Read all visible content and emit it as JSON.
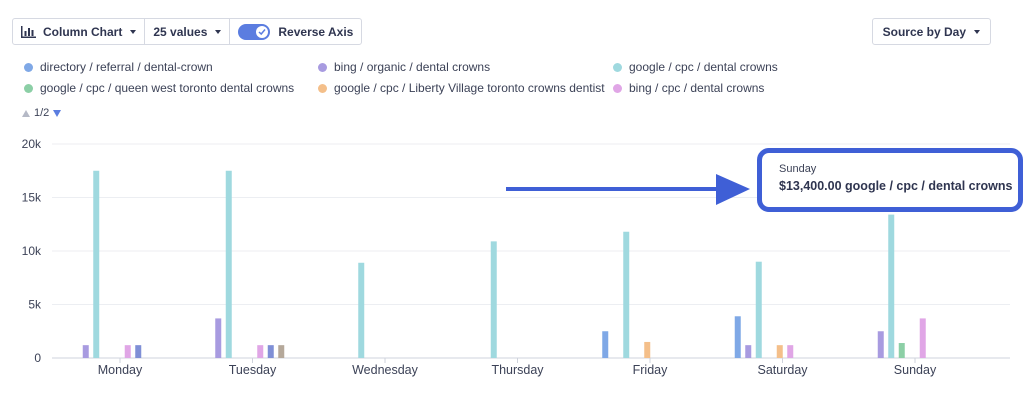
{
  "toolbar": {
    "chart_type_label": "Column Chart",
    "values_label": "25 values",
    "reverse_axis_label": "Reverse Axis",
    "reverse_axis_on": true
  },
  "group_by": {
    "label": "Source by Day"
  },
  "pager": {
    "text": "1/2"
  },
  "tooltip": {
    "day": "Sunday",
    "value_text": "$13,400.00 google / cpc / dental crowns"
  },
  "colors": {
    "accent": "#5b7de0",
    "highlight_border": "#3f5fd6"
  },
  "chart_data": {
    "type": "bar",
    "categories": [
      "Monday",
      "Tuesday",
      "Wednesday",
      "Thursday",
      "Friday",
      "Saturday",
      "Sunday"
    ],
    "y_ticks": [
      "0",
      "5k",
      "10k",
      "15k",
      "20k"
    ],
    "ylim": [
      0,
      20000
    ],
    "grid": true,
    "legend_position": "top",
    "series": [
      {
        "name": "directory / referral / dental-crown",
        "color": "#7fa8e6",
        "values": [
          0,
          0,
          0,
          0,
          2500,
          3900,
          0
        ]
      },
      {
        "name": "bing / organic / dental crowns",
        "color": "#a89be0",
        "values": [
          1200,
          3700,
          0,
          0,
          0,
          1200,
          2500
        ]
      },
      {
        "name": "google / cpc / dental crowns",
        "color": "#9fd9df",
        "values": [
          17500,
          17500,
          8900,
          10900,
          11800,
          9000,
          13400
        ]
      },
      {
        "name": "google / cpc / queen west toronto dental crowns",
        "color": "#8ccfa6",
        "values": [
          0,
          0,
          0,
          0,
          0,
          0,
          1400
        ]
      },
      {
        "name": "google / cpc / Liberty Village toronto crowns dentist",
        "color": "#f4bf8a",
        "values": [
          0,
          0,
          0,
          0,
          1500,
          1200,
          0
        ]
      },
      {
        "name": "bing / cpc / dental crowns",
        "color": "#e0a6e6",
        "values": [
          1200,
          1200,
          0,
          0,
          0,
          1200,
          3700
        ]
      },
      {
        "name": "",
        "color": "#7f8fd6",
        "values": [
          1200,
          1200,
          0,
          0,
          0,
          0,
          0
        ]
      },
      {
        "name": "",
        "color": "#b5a89a",
        "values": [
          0,
          1200,
          0,
          0,
          0,
          0,
          0
        ]
      }
    ]
  }
}
